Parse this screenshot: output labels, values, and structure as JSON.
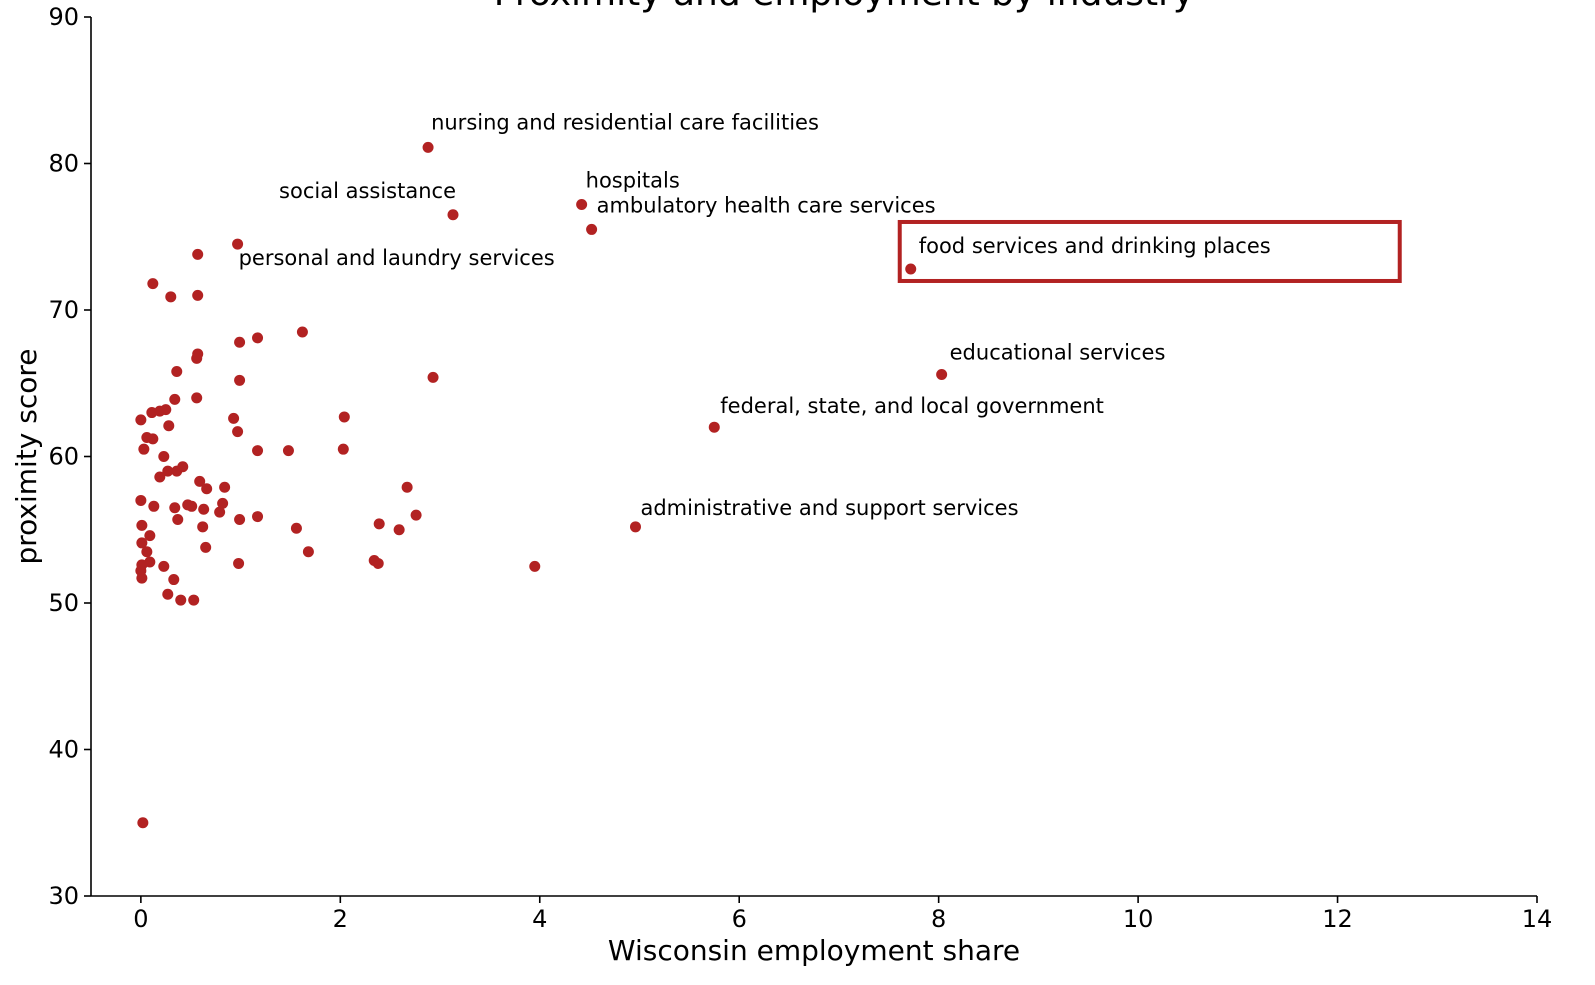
{
  "chart_data": {
    "type": "scatter",
    "title": "Proximity and employment by industry",
    "xlabel": "Wisconsin employment share",
    "ylabel": "proximity score",
    "xlim": [
      -0.5,
      14
    ],
    "ylim": [
      30,
      90
    ],
    "xticks": [
      0,
      2,
      4,
      6,
      8,
      10,
      12,
      14
    ],
    "yticks": [
      30,
      40,
      50,
      60,
      70,
      80,
      90
    ],
    "grid": false,
    "point_color": "#b22222",
    "highlight_color": "#b22222",
    "highlight_label": "food services and drinking places",
    "points": [
      {
        "x": 2.88,
        "y": 81.1,
        "label": "nursing and residential care facilities"
      },
      {
        "x": 3.13,
        "y": 76.5,
        "label": "social assistance"
      },
      {
        "x": 4.42,
        "y": 77.2,
        "label": "hospitals"
      },
      {
        "x": 4.52,
        "y": 75.5,
        "label": "ambulatory health care services"
      },
      {
        "x": 0.97,
        "y": 74.5,
        "label": "personal and laundry services"
      },
      {
        "x": 7.72,
        "y": 72.8,
        "label": "food services and drinking places"
      },
      {
        "x": 8.03,
        "y": 65.6,
        "label": "educational services"
      },
      {
        "x": 5.75,
        "y": 62.0,
        "label": "federal, state, and local government"
      },
      {
        "x": 4.96,
        "y": 55.2,
        "label": "administrative and support services"
      },
      {
        "x": 0.57,
        "y": 73.8
      },
      {
        "x": 0.12,
        "y": 71.8
      },
      {
        "x": 0.3,
        "y": 70.9
      },
      {
        "x": 0.57,
        "y": 71.0
      },
      {
        "x": 1.62,
        "y": 68.5
      },
      {
        "x": 1.17,
        "y": 68.1
      },
      {
        "x": 0.99,
        "y": 67.8
      },
      {
        "x": 0.57,
        "y": 67.0
      },
      {
        "x": 0.56,
        "y": 66.7
      },
      {
        "x": 0.36,
        "y": 65.8
      },
      {
        "x": 0.99,
        "y": 65.2
      },
      {
        "x": 2.93,
        "y": 65.4
      },
      {
        "x": 0.56,
        "y": 64.0
      },
      {
        "x": 0.34,
        "y": 63.9
      },
      {
        "x": 0.0,
        "y": 62.5
      },
      {
        "x": 0.11,
        "y": 63.0
      },
      {
        "x": 0.19,
        "y": 63.1
      },
      {
        "x": 0.25,
        "y": 63.2
      },
      {
        "x": 0.28,
        "y": 62.1
      },
      {
        "x": 0.93,
        "y": 62.6
      },
      {
        "x": 0.97,
        "y": 61.7
      },
      {
        "x": 2.04,
        "y": 62.7
      },
      {
        "x": 0.06,
        "y": 61.3
      },
      {
        "x": 0.12,
        "y": 61.2
      },
      {
        "x": 0.03,
        "y": 60.5
      },
      {
        "x": 0.23,
        "y": 60.0
      },
      {
        "x": 1.17,
        "y": 60.4
      },
      {
        "x": 1.48,
        "y": 60.4
      },
      {
        "x": 2.03,
        "y": 60.5
      },
      {
        "x": 0.27,
        "y": 59.0
      },
      {
        "x": 0.36,
        "y": 59.0
      },
      {
        "x": 0.42,
        "y": 59.3
      },
      {
        "x": 0.19,
        "y": 58.6
      },
      {
        "x": 0.59,
        "y": 58.3
      },
      {
        "x": 0.66,
        "y": 57.8
      },
      {
        "x": 0.84,
        "y": 57.9
      },
      {
        "x": 2.67,
        "y": 57.9
      },
      {
        "x": 0.0,
        "y": 57.0
      },
      {
        "x": 0.13,
        "y": 56.6
      },
      {
        "x": 0.34,
        "y": 56.5
      },
      {
        "x": 0.47,
        "y": 56.7
      },
      {
        "x": 0.51,
        "y": 56.6
      },
      {
        "x": 0.63,
        "y": 56.4
      },
      {
        "x": 0.79,
        "y": 56.2
      },
      {
        "x": 0.82,
        "y": 56.8
      },
      {
        "x": 0.37,
        "y": 55.7
      },
      {
        "x": 0.99,
        "y": 55.7
      },
      {
        "x": 1.17,
        "y": 55.9
      },
      {
        "x": 2.76,
        "y": 56.0
      },
      {
        "x": 0.01,
        "y": 55.3
      },
      {
        "x": 0.62,
        "y": 55.2
      },
      {
        "x": 1.56,
        "y": 55.1
      },
      {
        "x": 2.39,
        "y": 55.4
      },
      {
        "x": 2.59,
        "y": 55.0
      },
      {
        "x": 0.09,
        "y": 54.6
      },
      {
        "x": 0.01,
        "y": 54.1
      },
      {
        "x": 0.65,
        "y": 53.8
      },
      {
        "x": 0.06,
        "y": 53.5
      },
      {
        "x": 1.68,
        "y": 53.5
      },
      {
        "x": 0.09,
        "y": 52.8
      },
      {
        "x": 0.01,
        "y": 52.6
      },
      {
        "x": 0.23,
        "y": 52.5
      },
      {
        "x": 0.0,
        "y": 52.2
      },
      {
        "x": 0.98,
        "y": 52.7
      },
      {
        "x": 2.34,
        "y": 52.9
      },
      {
        "x": 2.38,
        "y": 52.7
      },
      {
        "x": 3.95,
        "y": 52.5
      },
      {
        "x": 0.01,
        "y": 51.7
      },
      {
        "x": 0.33,
        "y": 51.6
      },
      {
        "x": 0.27,
        "y": 50.6
      },
      {
        "x": 0.4,
        "y": 50.2
      },
      {
        "x": 0.53,
        "y": 50.2
      },
      {
        "x": 0.02,
        "y": 35.0
      }
    ]
  }
}
